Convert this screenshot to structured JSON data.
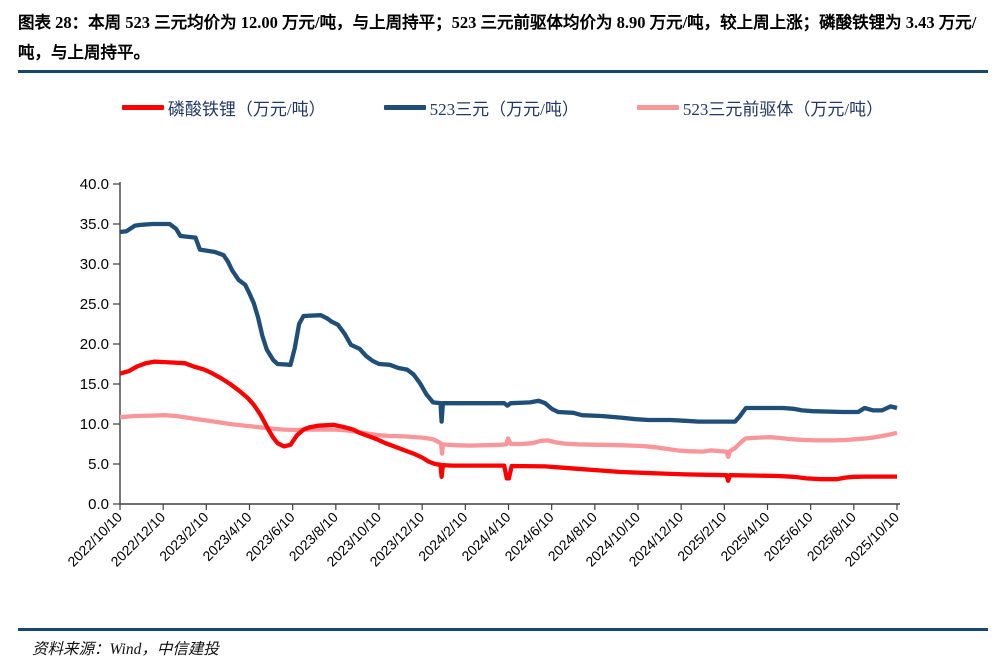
{
  "header": {
    "caption_label": "图表 28：",
    "caption_body": "本周 523 三元均价为 12.00 万元/吨，与上周持平；523 三元前驱体均价为 8.90 万元/吨，较上周上涨；磷酸铁锂为 3.43 万元/吨，与上周持平。"
  },
  "footer": {
    "source": "资料来源：Wind，中信建投"
  },
  "colors": {
    "rule": "#17466F",
    "legend_text": "#1F3864",
    "axis": "#404040",
    "lfp_red": "#FF0000",
    "ncm_blue": "#1F4E79",
    "precursor_pink": "#F8969A"
  },
  "chart_data": {
    "type": "line",
    "title": "",
    "xlabel": "",
    "ylabel": "",
    "grid": false,
    "legend_position": "top-center",
    "ylim": [
      0,
      40
    ],
    "y_tick_labels": [
      "0.0",
      "5.0",
      "10.0",
      "15.0",
      "20.0",
      "25.0",
      "30.0",
      "35.0",
      "40.0"
    ],
    "x_unit": "months since 2022/10/10",
    "x_range_months": 36,
    "x_tick_labels": [
      "2022/10/10",
      "2022/12/10",
      "2023/2/10",
      "2023/4/10",
      "2023/6/10",
      "2023/8/10",
      "2023/10/10",
      "2023/12/10",
      "2024/2/10",
      "2024/4/10",
      "2024/6/10",
      "2024/8/10",
      "2024/10/10",
      "2024/12/10",
      "2025/2/10",
      "2025/4/10",
      "2025/6/10",
      "2025/8/10",
      "2025/10/10"
    ],
    "x_tick_months": [
      0,
      2,
      4,
      6,
      8,
      10,
      12,
      14,
      16,
      18,
      20,
      22,
      24,
      26,
      28,
      30,
      32,
      34,
      36
    ],
    "current_values": {
      "磷酸铁锂": 3.43,
      "523三元": 12.0,
      "523三元前驱体": 8.9
    },
    "series": [
      {
        "name": "磷酸铁锂（万元/吨）",
        "color": "#FF0000",
        "points": [
          [
            0,
            16.3
          ],
          [
            0.4,
            16.6
          ],
          [
            0.8,
            17.2
          ],
          [
            1.2,
            17.6
          ],
          [
            1.6,
            17.8
          ],
          [
            2.3,
            17.7
          ],
          [
            3.0,
            17.6
          ],
          [
            3.4,
            17.2
          ],
          [
            3.9,
            16.8
          ],
          [
            4.3,
            16.3
          ],
          [
            4.7,
            15.7
          ],
          [
            5.1,
            15.0
          ],
          [
            5.5,
            14.2
          ],
          [
            5.9,
            13.3
          ],
          [
            6.2,
            12.4
          ],
          [
            6.5,
            11.2
          ],
          [
            6.7,
            10.2
          ],
          [
            6.9,
            9.2
          ],
          [
            7.1,
            8.3
          ],
          [
            7.3,
            7.6
          ],
          [
            7.6,
            7.2
          ],
          [
            7.9,
            7.4
          ],
          [
            8.2,
            8.6
          ],
          [
            8.5,
            9.3
          ],
          [
            8.8,
            9.6
          ],
          [
            9.2,
            9.8
          ],
          [
            9.9,
            9.9
          ],
          [
            10.4,
            9.6
          ],
          [
            10.8,
            9.3
          ],
          [
            11.1,
            8.9
          ],
          [
            11.5,
            8.5
          ],
          [
            11.9,
            8.1
          ],
          [
            12.3,
            7.6
          ],
          [
            12.7,
            7.2
          ],
          [
            13.1,
            6.8
          ],
          [
            13.6,
            6.3
          ],
          [
            14.0,
            5.8
          ],
          [
            14.3,
            5.3
          ],
          [
            14.6,
            5.0
          ],
          [
            14.85,
            4.9
          ],
          [
            14.9,
            3.4
          ],
          [
            14.96,
            4.85
          ],
          [
            15.4,
            4.8
          ],
          [
            17.8,
            4.8
          ],
          [
            17.92,
            3.2
          ],
          [
            18.02,
            3.2
          ],
          [
            18.15,
            4.75
          ],
          [
            19.7,
            4.7
          ],
          [
            20.2,
            4.6
          ],
          [
            21.2,
            4.4
          ],
          [
            22.2,
            4.2
          ],
          [
            23.2,
            4.0
          ],
          [
            24.2,
            3.9
          ],
          [
            25.2,
            3.8
          ],
          [
            26.2,
            3.7
          ],
          [
            27.2,
            3.65
          ],
          [
            28.1,
            3.6
          ],
          [
            28.18,
            2.9
          ],
          [
            28.26,
            3.6
          ],
          [
            29.5,
            3.55
          ],
          [
            30.5,
            3.5
          ],
          [
            31.2,
            3.4
          ],
          [
            31.8,
            3.2
          ],
          [
            32.5,
            3.1
          ],
          [
            33.2,
            3.1
          ],
          [
            33.6,
            3.3
          ],
          [
            34.0,
            3.4
          ],
          [
            34.6,
            3.43
          ],
          [
            36,
            3.43
          ]
        ]
      },
      {
        "name": "523三元（万元/吨）",
        "color": "#1F4E79",
        "points": [
          [
            0,
            34.0
          ],
          [
            0.3,
            34.1
          ],
          [
            0.7,
            34.8
          ],
          [
            1.0,
            34.9
          ],
          [
            1.5,
            35.0
          ],
          [
            2.3,
            35.0
          ],
          [
            2.6,
            34.4
          ],
          [
            2.8,
            33.5
          ],
          [
            3.5,
            33.3
          ],
          [
            3.7,
            31.8
          ],
          [
            4.4,
            31.5
          ],
          [
            4.8,
            31.1
          ],
          [
            5.0,
            30.3
          ],
          [
            5.2,
            29.2
          ],
          [
            5.5,
            28.0
          ],
          [
            5.8,
            27.4
          ],
          [
            6.0,
            26.3
          ],
          [
            6.2,
            25.1
          ],
          [
            6.4,
            23.3
          ],
          [
            6.6,
            21.0
          ],
          [
            6.8,
            19.3
          ],
          [
            7.1,
            18.0
          ],
          [
            7.3,
            17.5
          ],
          [
            7.9,
            17.4
          ],
          [
            8.1,
            19.5
          ],
          [
            8.3,
            22.5
          ],
          [
            8.5,
            23.5
          ],
          [
            9.3,
            23.6
          ],
          [
            9.6,
            23.2
          ],
          [
            9.8,
            22.8
          ],
          [
            10.1,
            22.4
          ],
          [
            10.4,
            21.3
          ],
          [
            10.7,
            19.9
          ],
          [
            11.1,
            19.4
          ],
          [
            11.4,
            18.5
          ],
          [
            11.7,
            17.9
          ],
          [
            12.0,
            17.5
          ],
          [
            12.5,
            17.4
          ],
          [
            12.9,
            17.0
          ],
          [
            13.3,
            16.8
          ],
          [
            13.6,
            16.2
          ],
          [
            13.9,
            15.1
          ],
          [
            14.2,
            13.7
          ],
          [
            14.5,
            12.7
          ],
          [
            14.85,
            12.6
          ],
          [
            14.9,
            10.3
          ],
          [
            14.96,
            12.6
          ],
          [
            17.8,
            12.6
          ],
          [
            17.95,
            12.3
          ],
          [
            18.1,
            12.6
          ],
          [
            19.0,
            12.7
          ],
          [
            19.4,
            12.9
          ],
          [
            19.7,
            12.6
          ],
          [
            20.0,
            11.9
          ],
          [
            20.3,
            11.5
          ],
          [
            21.0,
            11.4
          ],
          [
            21.4,
            11.1
          ],
          [
            22.3,
            11.0
          ],
          [
            23.2,
            10.8
          ],
          [
            23.9,
            10.6
          ],
          [
            24.5,
            10.5
          ],
          [
            25.5,
            10.5
          ],
          [
            26.2,
            10.4
          ],
          [
            26.8,
            10.3
          ],
          [
            28.5,
            10.3
          ],
          [
            28.7,
            10.9
          ],
          [
            29.0,
            12.0
          ],
          [
            30.7,
            12.0
          ],
          [
            31.2,
            11.9
          ],
          [
            31.6,
            11.7
          ],
          [
            32.1,
            11.6
          ],
          [
            33.5,
            11.5
          ],
          [
            34.2,
            11.5
          ],
          [
            34.5,
            12.0
          ],
          [
            34.9,
            11.7
          ],
          [
            35.3,
            11.7
          ],
          [
            35.7,
            12.2
          ],
          [
            36,
            12.0
          ]
        ]
      },
      {
        "name": "523三元前驱体（万元/吨）",
        "color": "#F8969A",
        "points": [
          [
            0,
            10.85
          ],
          [
            0.7,
            11.0
          ],
          [
            1.5,
            11.05
          ],
          [
            2.1,
            11.1
          ],
          [
            2.6,
            11.0
          ],
          [
            3.1,
            10.8
          ],
          [
            3.6,
            10.6
          ],
          [
            4.1,
            10.4
          ],
          [
            4.6,
            10.2
          ],
          [
            5.1,
            10.0
          ],
          [
            5.6,
            9.85
          ],
          [
            6.1,
            9.7
          ],
          [
            6.6,
            9.55
          ],
          [
            7.1,
            9.4
          ],
          [
            7.6,
            9.3
          ],
          [
            8.1,
            9.25
          ],
          [
            8.7,
            9.3
          ],
          [
            10.0,
            9.3
          ],
          [
            10.5,
            9.2
          ],
          [
            11.0,
            9.0
          ],
          [
            11.5,
            8.8
          ],
          [
            12.0,
            8.6
          ],
          [
            12.5,
            8.5
          ],
          [
            13.2,
            8.45
          ],
          [
            14.0,
            8.3
          ],
          [
            14.5,
            8.1
          ],
          [
            14.8,
            7.7
          ],
          [
            14.88,
            7.5
          ],
          [
            14.92,
            6.3
          ],
          [
            14.96,
            7.45
          ],
          [
            15.5,
            7.35
          ],
          [
            16.2,
            7.3
          ],
          [
            17.0,
            7.35
          ],
          [
            17.6,
            7.4
          ],
          [
            17.9,
            7.45
          ],
          [
            17.98,
            8.2
          ],
          [
            18.1,
            7.5
          ],
          [
            18.6,
            7.5
          ],
          [
            19.1,
            7.6
          ],
          [
            19.5,
            7.9
          ],
          [
            19.8,
            7.95
          ],
          [
            20.2,
            7.7
          ],
          [
            20.6,
            7.55
          ],
          [
            21.2,
            7.45
          ],
          [
            22.2,
            7.4
          ],
          [
            23.2,
            7.35
          ],
          [
            24.2,
            7.25
          ],
          [
            24.8,
            7.1
          ],
          [
            25.3,
            6.9
          ],
          [
            25.8,
            6.7
          ],
          [
            26.3,
            6.6
          ],
          [
            27.0,
            6.55
          ],
          [
            27.4,
            6.7
          ],
          [
            27.8,
            6.6
          ],
          [
            28.1,
            6.55
          ],
          [
            28.18,
            5.9
          ],
          [
            28.26,
            6.6
          ],
          [
            28.5,
            7.0
          ],
          [
            28.8,
            7.8
          ],
          [
            29.0,
            8.2
          ],
          [
            29.6,
            8.3
          ],
          [
            30.1,
            8.35
          ],
          [
            30.6,
            8.25
          ],
          [
            31.1,
            8.1
          ],
          [
            31.7,
            8.0
          ],
          [
            32.3,
            7.95
          ],
          [
            33.0,
            7.95
          ],
          [
            33.6,
            8.0
          ],
          [
            34.1,
            8.1
          ],
          [
            34.6,
            8.2
          ],
          [
            35.0,
            8.35
          ],
          [
            35.4,
            8.55
          ],
          [
            35.7,
            8.7
          ],
          [
            36,
            8.9
          ]
        ]
      }
    ]
  }
}
